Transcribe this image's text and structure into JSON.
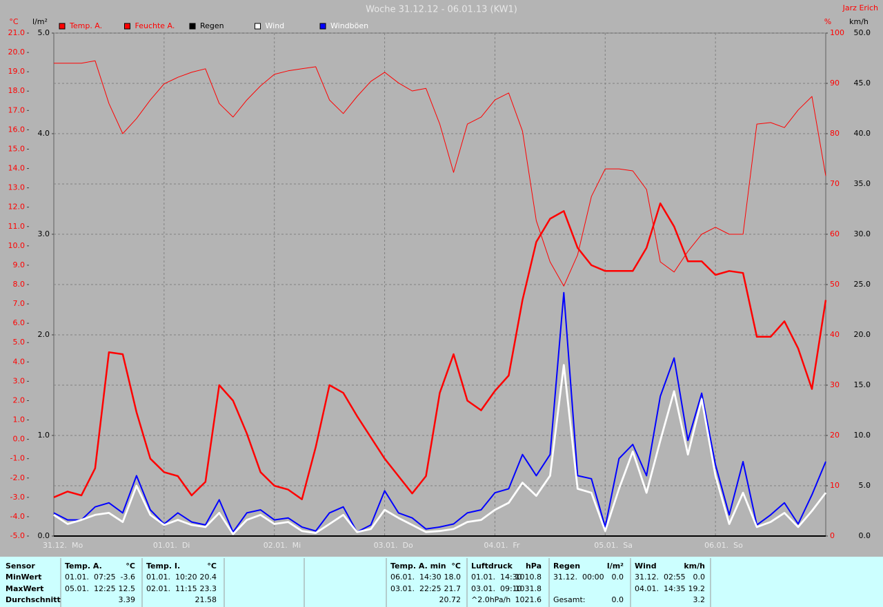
{
  "chart_data": {
    "type": "line",
    "title": "Woche 31.12.12 - 06.01.13 (KW1)",
    "author": "Jarz Erich",
    "x_labels": [
      "31.12.  Mo",
      "01.01.  Di",
      "02.01.  Mi",
      "03.01.  Do",
      "04.01.  Fr",
      "05.01.  Sa",
      "06.01.  So"
    ],
    "grid": true,
    "axes": [
      {
        "unit": "°C",
        "color": "#ff0000",
        "lim": [
          -5,
          21
        ],
        "ticks": [
          {
            "value": 21,
            "label": "21.0"
          },
          {
            "value": 20,
            "label": "20.0"
          },
          {
            "value": 19,
            "label": "19.0"
          },
          {
            "value": 18,
            "label": "18.0"
          },
          {
            "value": 17,
            "label": "17.0"
          },
          {
            "value": 16,
            "label": "16.0"
          },
          {
            "value": 15,
            "label": "15.0"
          },
          {
            "value": 14,
            "label": "14.0"
          },
          {
            "value": 13,
            "label": "13.0"
          },
          {
            "value": 12,
            "label": "12.0"
          },
          {
            "value": 11,
            "label": "11.0"
          },
          {
            "value": 10,
            "label": "10.0"
          },
          {
            "value": 9,
            "label": "9.0"
          },
          {
            "value": 8,
            "label": "8.0"
          },
          {
            "value": 7,
            "label": "7.0"
          },
          {
            "value": 6,
            "label": "6.0"
          },
          {
            "value": 5,
            "label": "5.0"
          },
          {
            "value": 4,
            "label": "4.0"
          },
          {
            "value": 3,
            "label": "3.0"
          },
          {
            "value": 2,
            "label": "2.0"
          },
          {
            "value": 1,
            "label": "1.0"
          },
          {
            "value": 0,
            "label": "0.0"
          },
          {
            "value": -1,
            "label": "-1.0"
          },
          {
            "value": -2,
            "label": "-2.0"
          },
          {
            "value": -3,
            "label": "-3.0"
          },
          {
            "value": -4,
            "label": "-4.0"
          },
          {
            "value": -5,
            "label": "-5.0"
          }
        ]
      },
      {
        "unit": "l/m²",
        "color": "#000000",
        "lim": [
          0,
          5
        ],
        "ticks": [
          {
            "value": 5,
            "label": "5.0"
          },
          {
            "value": 4,
            "label": "4.0"
          },
          {
            "value": 3,
            "label": "3.0"
          },
          {
            "value": 2,
            "label": "2.0"
          },
          {
            "value": 1,
            "label": "1.0"
          },
          {
            "value": 0,
            "label": "0.0"
          }
        ]
      },
      {
        "unit": "%",
        "color": "#ff0000",
        "lim": [
          0,
          100
        ],
        "ticks": [
          100,
          90,
          80,
          70,
          60,
          50,
          40,
          30,
          20,
          10,
          0
        ]
      },
      {
        "unit": "km/h",
        "color": "#000000",
        "lim": [
          0,
          50
        ],
        "ticks": [
          {
            "value": 50,
            "label": "50.0"
          },
          {
            "value": 45,
            "label": "45.0"
          },
          {
            "value": 40,
            "label": "40.0"
          },
          {
            "value": 35,
            "label": "35.0"
          },
          {
            "value": 30,
            "label": "30.0"
          },
          {
            "value": 25,
            "label": "25.0"
          },
          {
            "value": 20,
            "label": "20.0"
          },
          {
            "value": 15,
            "label": "15.0"
          },
          {
            "value": 10,
            "label": "10.0"
          },
          {
            "value": 5,
            "label": "5.0"
          },
          {
            "value": 0,
            "label": "0.0"
          }
        ]
      }
    ],
    "series": [
      {
        "name": "Temp. A.",
        "color": "#ff0000",
        "axis": 0,
        "values": [
          -3.0,
          -2.7,
          -2.9,
          -1.5,
          4.5,
          4.4,
          1.4,
          -1.0,
          -1.7,
          -1.9,
          -2.9,
          -2.2,
          2.8,
          2.0,
          0.3,
          -1.7,
          -2.4,
          -2.6,
          -3.1,
          -0.4,
          2.8,
          2.4,
          1.2,
          0.1,
          -1.0,
          -1.9,
          -2.8,
          -1.9,
          2.4,
          4.4,
          2.0,
          1.5,
          2.5,
          3.3,
          7.2,
          10.2,
          11.4,
          11.8,
          9.9,
          9.0,
          8.7,
          8.7,
          8.7,
          9.9,
          12.2,
          11.0,
          9.2,
          9.2,
          8.5,
          8.7,
          8.6,
          5.3,
          5.3,
          6.1,
          4.7,
          2.6,
          7.2
        ]
      },
      {
        "name": "Feuchte A.",
        "color": "#ff0000",
        "axis": 2,
        "values": [
          94.0,
          94.0,
          94.0,
          94.5,
          86.0,
          80.0,
          83.0,
          86.7,
          89.9,
          91.2,
          92.2,
          92.9,
          86.0,
          83.3,
          86.7,
          89.5,
          91.8,
          92.5,
          92.9,
          93.3,
          86.7,
          84.0,
          87.4,
          90.4,
          92.2,
          90.1,
          88.5,
          89.0,
          81.9,
          72.3,
          81.9,
          83.3,
          86.7,
          88.1,
          80.5,
          62.7,
          54.5,
          49.7,
          55.9,
          67.5,
          73.0,
          73.0,
          72.6,
          68.9,
          54.5,
          52.5,
          56.6,
          60.0,
          61.4,
          60.0,
          60.0,
          81.9,
          82.2,
          81.2,
          84.7,
          87.4,
          71.6
        ]
      },
      {
        "name": "Regen",
        "color": "#000000",
        "axis": 1,
        "values": [
          0,
          0,
          0,
          0,
          0,
          0,
          0,
          0,
          0,
          0,
          0,
          0,
          0,
          0,
          0,
          0,
          0,
          0,
          0,
          0,
          0,
          0,
          0,
          0,
          0,
          0,
          0,
          0,
          0,
          0,
          0,
          0,
          0,
          0,
          0,
          0,
          0,
          0,
          0,
          0,
          0,
          0,
          0,
          0,
          0,
          0,
          0,
          0,
          0,
          0,
          0,
          0,
          0,
          0,
          0,
          0,
          0
        ]
      },
      {
        "name": "Wind",
        "color": "#ffffff",
        "axis": 3,
        "values": [
          2.1,
          1.2,
          1.6,
          2.1,
          2.3,
          1.4,
          5.0,
          2.1,
          1.1,
          1.6,
          1.1,
          0.9,
          2.3,
          0.2,
          1.6,
          2.1,
          1.2,
          1.4,
          0.5,
          0.3,
          1.2,
          2.1,
          0.4,
          0.7,
          2.6,
          1.8,
          1.1,
          0.4,
          0.5,
          0.7,
          1.4,
          1.6,
          2.6,
          3.3,
          5.3,
          4.0,
          6.0,
          17.0,
          4.7,
          4.3,
          0.5,
          4.7,
          8.4,
          4.3,
          9.5,
          14.4,
          8.1,
          13.6,
          6.0,
          1.2,
          4.3,
          0.9,
          1.4,
          2.3,
          0.9,
          2.5,
          4.3
        ]
      },
      {
        "name": "Windböen",
        "color": "#0000ff",
        "axis": 3,
        "values": [
          2.3,
          1.6,
          1.6,
          2.9,
          3.3,
          2.3,
          6.0,
          2.6,
          1.2,
          2.3,
          1.4,
          1.1,
          3.6,
          0.4,
          2.3,
          2.6,
          1.6,
          1.8,
          0.9,
          0.5,
          2.3,
          2.9,
          0.4,
          1.1,
          4.5,
          2.3,
          1.8,
          0.7,
          0.9,
          1.2,
          2.3,
          2.6,
          4.3,
          4.7,
          8.1,
          6.0,
          8.1,
          24.2,
          6.0,
          5.7,
          0.9,
          7.7,
          9.1,
          6.0,
          13.9,
          17.7,
          9.5,
          14.2,
          7.1,
          2.1,
          7.4,
          1.1,
          2.1,
          3.3,
          1.2,
          4.1,
          7.4
        ]
      }
    ]
  },
  "stats_table": {
    "row_labels": [
      "Sensor",
      "MinWert",
      "MaxWert",
      "Durchschnitt"
    ],
    "columns": [
      {
        "title": "Temp. A.",
        "unit": "°C",
        "min": {
          "date": "01.01.  07:25",
          "value": "-3.6"
        },
        "max": {
          "date": "05.01.  12:25",
          "value": "12.5"
        },
        "avg": {
          "value": "3.39"
        }
      },
      {
        "title": "Temp. I.",
        "unit": "°C",
        "min": {
          "date": "01.01.  10:20",
          "value": "20.4"
        },
        "max": {
          "date": "02.01.  11:15",
          "value": "23.3"
        },
        "avg": {
          "value": "21.58"
        }
      },
      {
        "title": "Temp. A. min",
        "unit": "°C",
        "min": {
          "date": "06.01.  14:30",
          "value": "18.0"
        },
        "max": {
          "date": "03.01.  22:25",
          "value": "21.7"
        },
        "avg": {
          "value": "20.72"
        }
      },
      {
        "title": "Luftdruck",
        "unit": "hPa",
        "min": {
          "date": "01.01.  14:30",
          "value": "1010.8"
        },
        "max": {
          "date": "03.01.  09:10",
          "value": "1031.8"
        },
        "avg": {
          "label": "^2.0hPa/h",
          "value": "1021.6"
        }
      },
      {
        "title": "Regen",
        "unit": "l/m²",
        "min": {
          "date": "31.12.  00:00",
          "value": "0.0"
        },
        "total": {
          "label": "Gesamt:",
          "value": "0.0"
        }
      },
      {
        "title": "Wind",
        "unit": "km/h",
        "min": {
          "date": "31.12.  02:55",
          "value": "0.0"
        },
        "max": {
          "date": "04.01.  14:35",
          "value": "19.2"
        },
        "avg": {
          "value": "3.2"
        }
      }
    ]
  }
}
